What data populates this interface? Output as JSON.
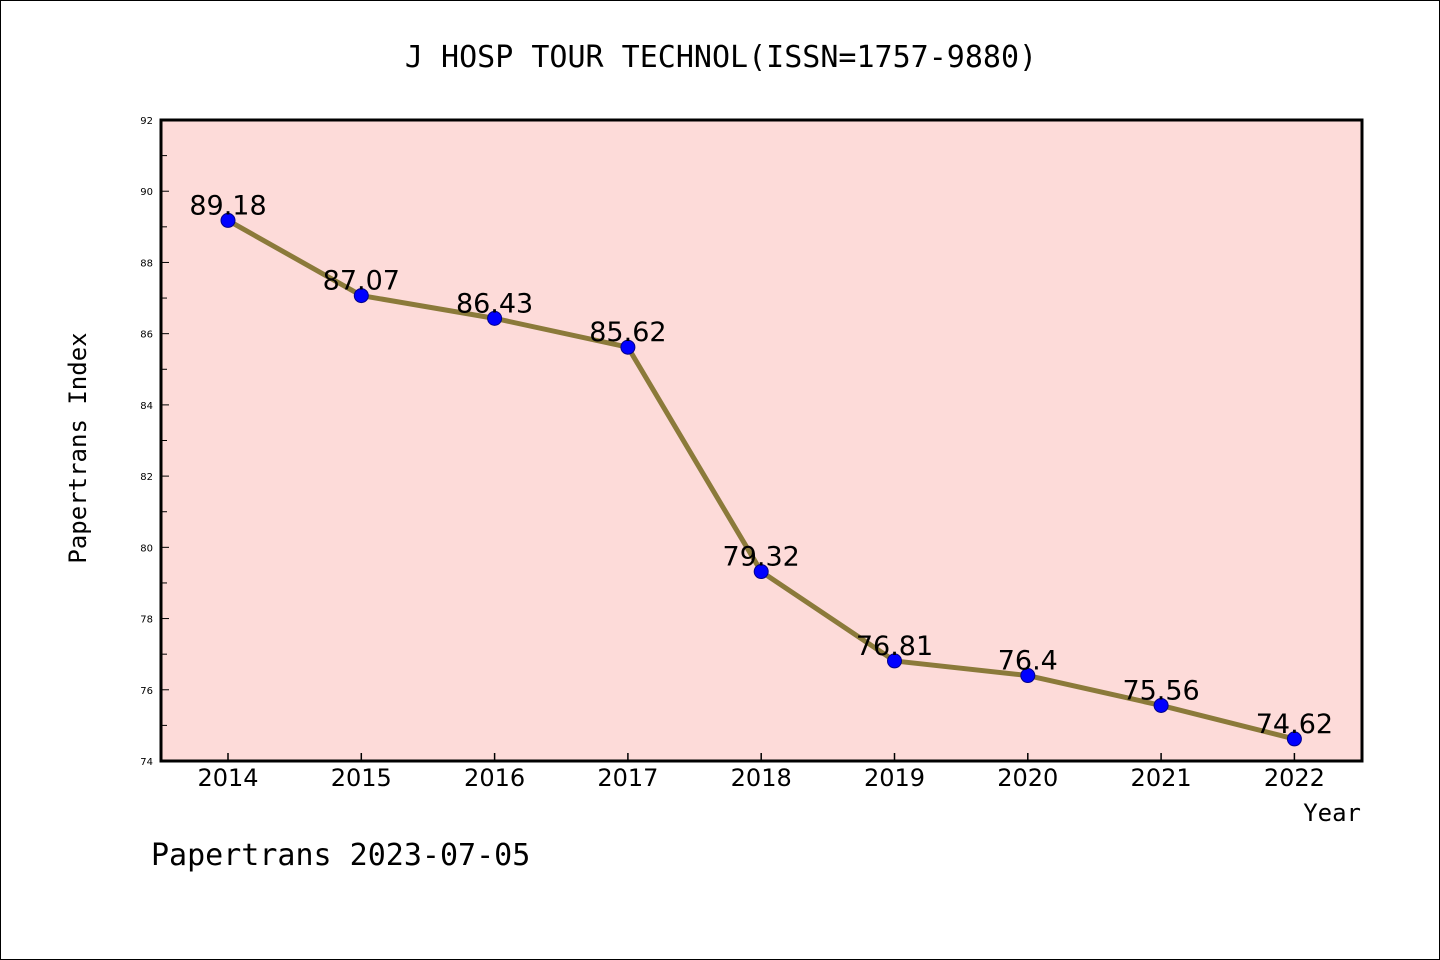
{
  "chart_data": {
    "type": "line",
    "title": "J HOSP TOUR TECHNOL(ISSN=1757-9880)",
    "xlabel": "Year",
    "ylabel": "Papertrans Index",
    "categories": [
      "2014",
      "2015",
      "2016",
      "2017",
      "2018",
      "2019",
      "2020",
      "2021",
      "2022"
    ],
    "series": [
      {
        "values": [
          89.18,
          87.07,
          86.43,
          85.62,
          79.32,
          76.81,
          76.4,
          75.56,
          74.62
        ],
        "data_labels": [
          "89.18",
          "87.07",
          "86.43",
          "85.62",
          "79.32",
          "76.81",
          "76.4",
          "75.56",
          "74.62"
        ]
      }
    ],
    "ylim": [
      74,
      92
    ],
    "yticks": [
      "74",
      "76",
      "78",
      "80",
      "82",
      "84",
      "86",
      "88",
      "90",
      "92"
    ],
    "ytick_values": [
      74,
      76,
      78,
      80,
      82,
      84,
      86,
      88,
      90,
      92
    ],
    "grid": false,
    "colors": {
      "plot_background": "#fddbd9",
      "line": "#8b7a3a",
      "marker_fill": "#0000ff",
      "marker_edge": "#00008b",
      "frame": "#000000"
    }
  },
  "footer": "Papertrans 2023-07-05"
}
